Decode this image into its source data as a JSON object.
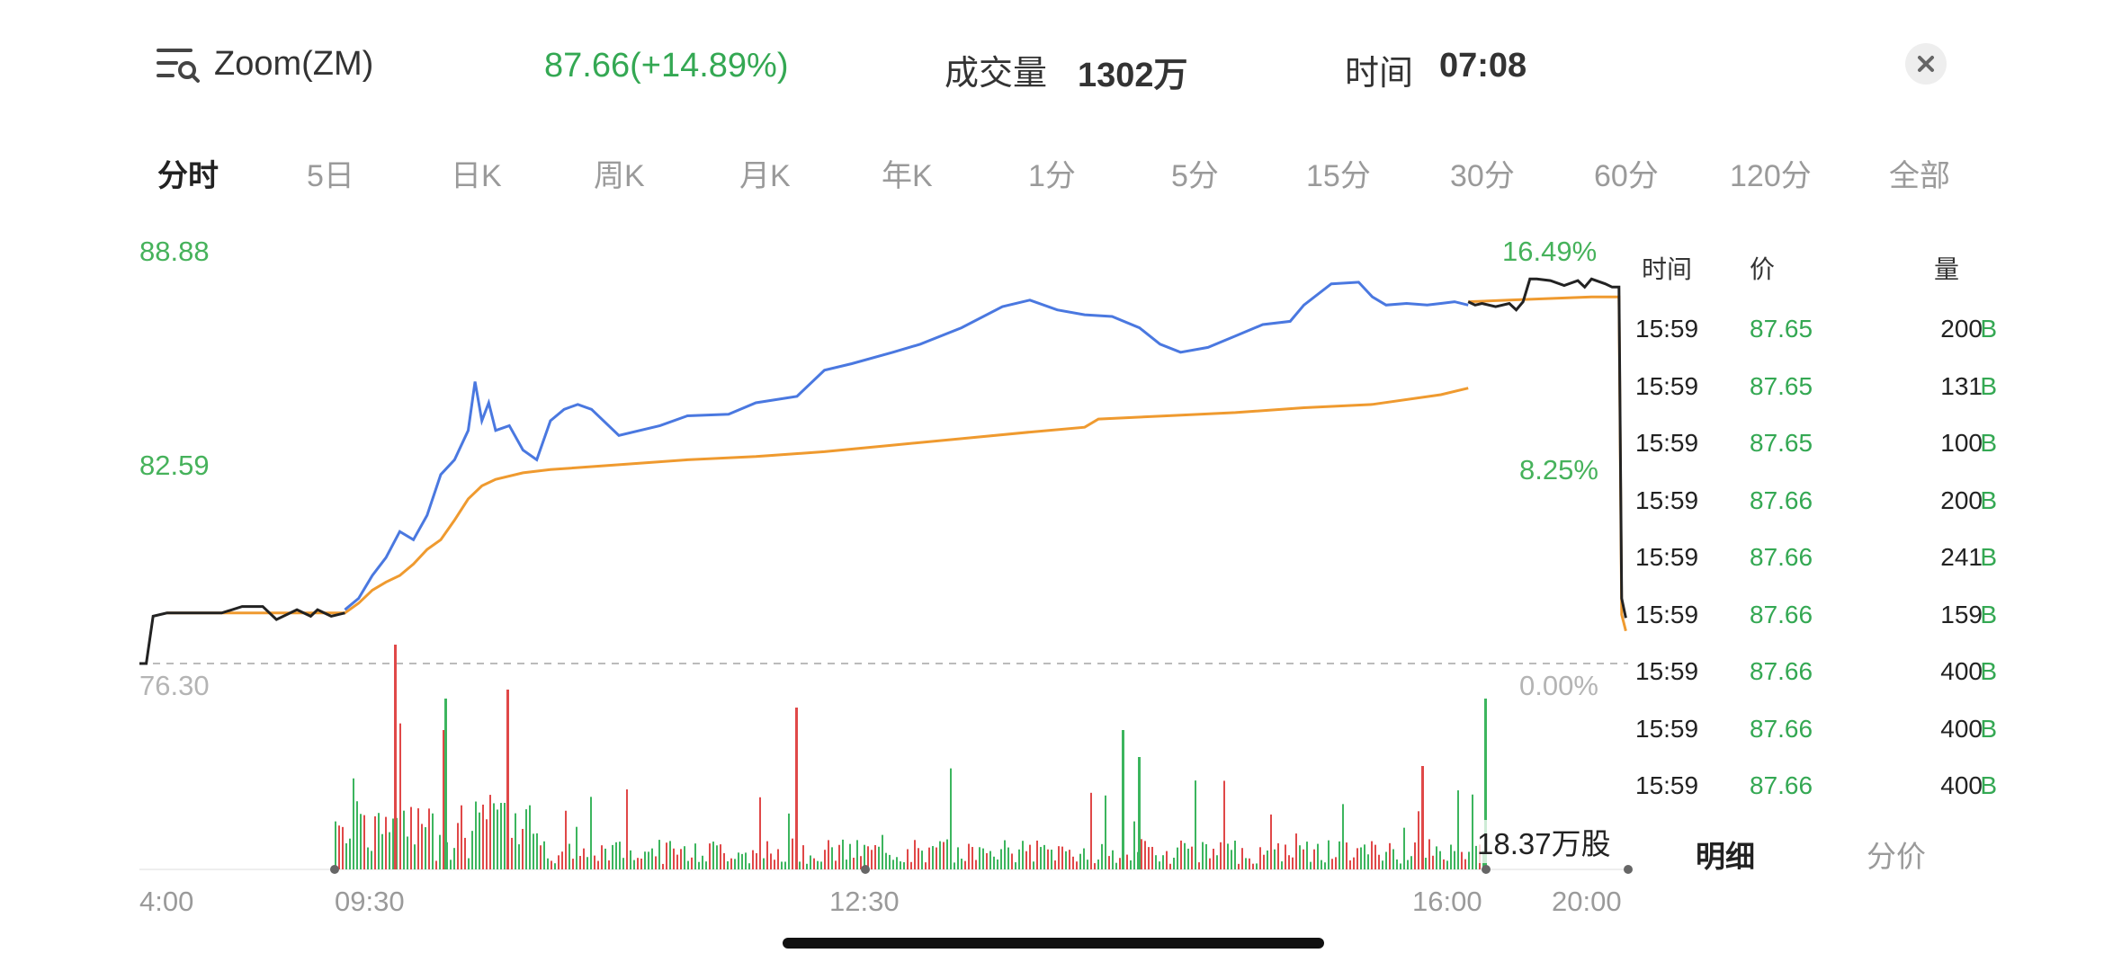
{
  "header": {
    "menu_icon": "list-search-icon",
    "stock_name": "Zoom(ZM)",
    "price_change": "87.66(+14.89%)",
    "volume_label": "成交量",
    "volume_value": "1302万",
    "time_label": "时间",
    "time_value": "07:08",
    "close_icon": "close-icon"
  },
  "tabs": [
    "分时",
    "5日",
    "日K",
    "周K",
    "月K",
    "年K",
    "1分",
    "5分",
    "15分",
    "30分",
    "60分",
    "120分",
    "全部"
  ],
  "active_tab": "分时",
  "trade_panel": {
    "headers": {
      "time": "时间",
      "price": "价",
      "volume": "量"
    },
    "rows": [
      {
        "time": "15:59",
        "price": "87.65",
        "volume": "200",
        "flag": "B"
      },
      {
        "time": "15:59",
        "price": "87.65",
        "volume": "131",
        "flag": "B"
      },
      {
        "time": "15:59",
        "price": "87.65",
        "volume": "100",
        "flag": "B"
      },
      {
        "time": "15:59",
        "price": "87.66",
        "volume": "200",
        "flag": "B"
      },
      {
        "time": "15:59",
        "price": "87.66",
        "volume": "241",
        "flag": "B"
      },
      {
        "time": "15:59",
        "price": "87.66",
        "volume": "159",
        "flag": "B"
      },
      {
        "time": "15:59",
        "price": "87.66",
        "volume": "400",
        "flag": "B"
      },
      {
        "time": "15:59",
        "price": "87.66",
        "volume": "400",
        "flag": "B"
      },
      {
        "time": "15:59",
        "price": "87.66",
        "volume": "400",
        "flag": "B"
      }
    ],
    "bottom_tabs": [
      "明细",
      "分价"
    ],
    "active_bottom_tab": "明细"
  },
  "chart_data": {
    "type": "line",
    "y_price_labels": [
      "88.88",
      "82.59",
      "76.30"
    ],
    "y_pct_labels": [
      "16.49%",
      "8.25%",
      "0.00%"
    ],
    "x_labels": [
      "4:00",
      "09:30",
      "12:30",
      "16:00",
      "20:00"
    ],
    "volume_label": "18.37万股",
    "ylim": [
      76.3,
      88.88
    ],
    "baseline": 76.3,
    "colors": {
      "price": "#4a78e0",
      "avg": "#ef9a2f",
      "extended": "#222222",
      "up": "#e04848",
      "down": "#3cb55e",
      "baseline": "#bbbbbb"
    },
    "series": [
      {
        "role": "premarket",
        "x": [
          0,
          0.05,
          0.1,
          0.2,
          0.35,
          0.4,
          0.6,
          0.75,
          0.8,
          0.9,
          1.0,
          1.15,
          1.25,
          1.3,
          1.4,
          1.5
        ],
        "y": [
          76.3,
          76.3,
          77.75,
          77.85,
          77.85,
          77.85,
          77.85,
          78.05,
          78.05,
          78.05,
          77.65,
          77.95,
          77.75,
          77.95,
          77.75,
          77.85
        ]
      },
      {
        "role": "regular",
        "x": [
          1.5,
          1.6,
          1.7,
          1.8,
          1.9,
          2.0,
          2.1,
          2.2,
          2.3,
          2.4,
          2.45,
          2.5,
          2.55,
          2.6,
          2.7,
          2.8,
          2.9,
          3.0,
          3.1,
          3.2,
          3.3,
          3.5,
          3.8,
          4.0,
          4.3,
          4.5,
          4.8,
          5.0,
          5.2,
          5.5,
          5.7,
          6.0,
          6.3,
          6.5,
          6.7,
          6.9,
          7.1,
          7.3,
          7.45,
          7.6,
          7.8,
          8.0,
          8.2,
          8.4,
          8.5,
          8.7,
          8.9,
          9.0,
          9.1,
          9.25,
          9.4,
          9.5,
          9.6,
          9.7
        ],
        "y": [
          77.95,
          78.3,
          79.0,
          79.55,
          80.35,
          80.1,
          80.85,
          82.1,
          82.55,
          83.45,
          84.95,
          83.75,
          84.3,
          83.45,
          83.6,
          82.85,
          82.55,
          83.75,
          84.1,
          84.25,
          84.1,
          83.3,
          83.6,
          83.9,
          83.95,
          84.3,
          84.5,
          85.3,
          85.5,
          85.85,
          86.1,
          86.6,
          87.25,
          87.45,
          87.15,
          87.0,
          86.95,
          86.6,
          86.1,
          85.85,
          86.0,
          86.35,
          86.7,
          86.8,
          87.3,
          87.95,
          88.0,
          87.55,
          87.3,
          87.35,
          87.3,
          87.35,
          87.4,
          87.3
        ]
      },
      {
        "role": "vwap",
        "x": [
          0.2,
          0.8,
          1.3,
          1.5,
          1.6,
          1.7,
          1.8,
          1.9,
          2.0,
          2.1,
          2.2,
          2.3,
          2.4,
          2.5,
          2.6,
          2.8,
          3.0,
          3.5,
          4.0,
          4.5,
          5.0,
          5.5,
          6.0,
          6.5,
          6.9,
          7.0,
          7.5,
          8.0,
          8.5,
          9.0,
          9.5,
          9.7
        ],
        "y": [
          77.85,
          77.85,
          77.85,
          77.85,
          78.15,
          78.55,
          78.8,
          79.0,
          79.35,
          79.8,
          80.1,
          80.7,
          81.35,
          81.75,
          81.95,
          82.15,
          82.25,
          82.4,
          82.55,
          82.65,
          82.8,
          83.0,
          83.2,
          83.4,
          83.55,
          83.8,
          83.9,
          84.0,
          84.15,
          84.25,
          84.55,
          84.75
        ]
      },
      {
        "role": "afterhours",
        "x": [
          9.7,
          9.75,
          9.8,
          9.9,
          10.0,
          10.05,
          10.1,
          10.15,
          10.2,
          10.3,
          10.4,
          10.5,
          10.55,
          10.6,
          10.7,
          10.75,
          10.8,
          10.82,
          10.85
        ],
        "y": [
          87.4,
          87.3,
          87.35,
          87.25,
          87.35,
          87.15,
          87.4,
          88.1,
          88.1,
          88.05,
          87.9,
          88.05,
          87.85,
          88.1,
          87.95,
          87.85,
          87.85,
          78.3,
          77.7
        ]
      },
      {
        "role": "afterhours-vwap",
        "x": [
          9.7,
          10.0,
          10.3,
          10.6,
          10.8,
          10.82,
          10.85
        ],
        "y": [
          87.4,
          87.45,
          87.5,
          87.55,
          87.55,
          77.8,
          77.3
        ]
      }
    ]
  }
}
